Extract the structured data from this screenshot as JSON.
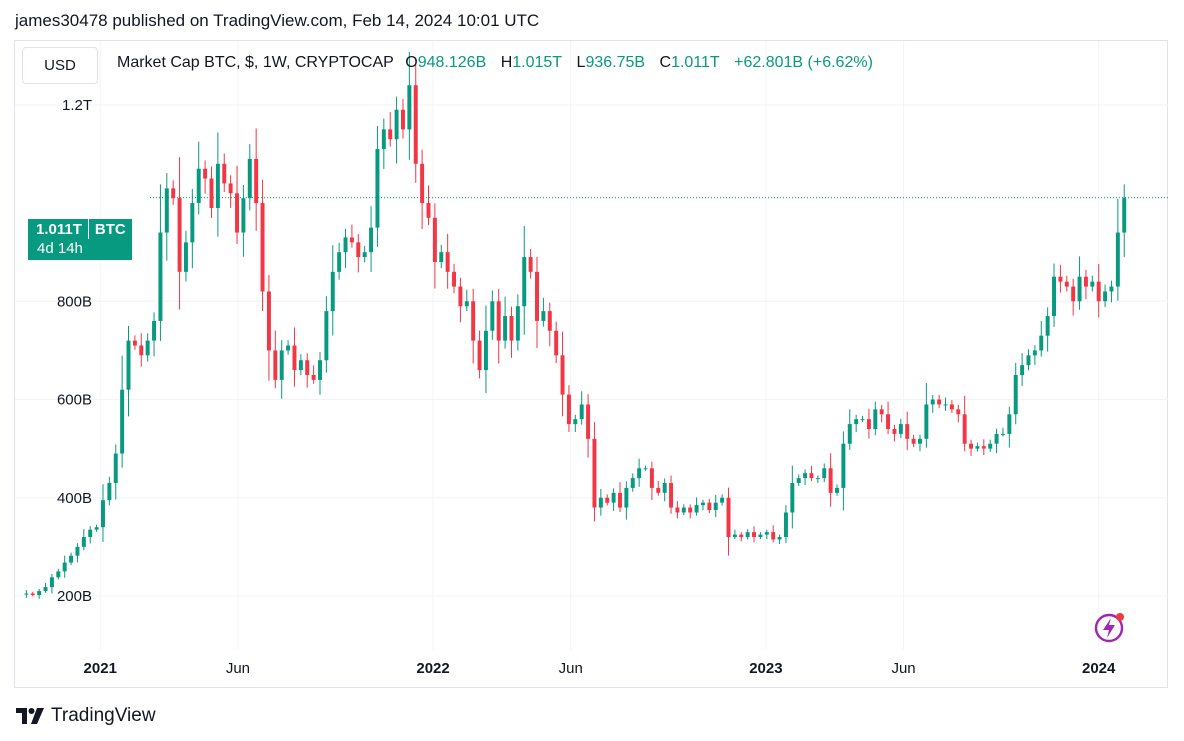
{
  "header": {
    "published_text": "james30478 published on TradingView.com, Feb 14, 2024 10:01 UTC"
  },
  "toolbar": {
    "currency_button": "USD"
  },
  "legend": {
    "symbol": "Market Cap BTC, $, 1W, CRYPTOCAP",
    "open_label": "O",
    "open_value": "948.126B",
    "high_label": "H",
    "high_value": "1.015T",
    "low_label": "L",
    "low_value": "936.75B",
    "close_label": "C",
    "close_value": "1.011T",
    "change": "+62.801B (+6.62%)"
  },
  "price_tag": {
    "value": "1.011T",
    "unit": "BTC",
    "countdown": "4d 14h"
  },
  "footer": {
    "brand": "TradingView"
  },
  "colors": {
    "up": "#089981",
    "down": "#f23645",
    "grid": "#f0f3fa",
    "text": "#131722",
    "bolt": "#9c27b0"
  },
  "chart_data": {
    "type": "candlestick",
    "interval": "1W",
    "unit": "USD (billions)",
    "y_axis_ticks": [
      {
        "value": 200,
        "label": "200B"
      },
      {
        "value": 400,
        "label": "400B"
      },
      {
        "value": 600,
        "label": "600B"
      },
      {
        "value": 800,
        "label": "800B"
      },
      {
        "value": 1200,
        "label": "1.2T"
      }
    ],
    "x_axis_ticks": [
      {
        "date": "2021-01-01",
        "label": "2021",
        "bold": true
      },
      {
        "date": "2021-06-01",
        "label": "Jun",
        "bold": false
      },
      {
        "date": "2022-01-01",
        "label": "2022",
        "bold": true
      },
      {
        "date": "2022-06-01",
        "label": "Jun",
        "bold": false
      },
      {
        "date": "2023-01-01",
        "label": "2023",
        "bold": true
      },
      {
        "date": "2023-06-01",
        "label": "Jun",
        "bold": false
      },
      {
        "date": "2024-01-01",
        "label": "2024",
        "bold": true
      }
    ],
    "ylim": [
      90,
      1330
    ],
    "xlim": [
      "2020-10-05",
      "2024-03-17"
    ],
    "last_price": 1011,
    "grid": true,
    "close_series": {
      "start_date": "2020-10-12",
      "step_days": 7,
      "values": [
        205,
        202,
        210,
        218,
        238,
        250,
        268,
        282,
        300,
        320,
        335,
        340,
        395,
        430,
        490,
        620,
        720,
        710,
        690,
        720,
        760,
        940,
        1030,
        1010,
        860,
        920,
        1000,
        1070,
        1050,
        990,
        1080,
        1040,
        1020,
        940,
        1010,
        1090,
        1000,
        820,
        700,
        640,
        700,
        710,
        660,
        680,
        650,
        640,
        680,
        780,
        860,
        900,
        930,
        920,
        890,
        900,
        950,
        1110,
        1150,
        1130,
        1190,
        1150,
        1240,
        1080,
        1000,
        970,
        880,
        900,
        860,
        830,
        790,
        800,
        720,
        660,
        740,
        800,
        720,
        770,
        720,
        790,
        890,
        860,
        760,
        780,
        740,
        690,
        610,
        550,
        560,
        590,
        520,
        380,
        400,
        390,
        410,
        380,
        420,
        440,
        460,
        460,
        420,
        410,
        430,
        380,
        370,
        380,
        370,
        385,
        390,
        375,
        390,
        400,
        320,
        325,
        320,
        330,
        320,
        325,
        330,
        315,
        320,
        370,
        430,
        440,
        450,
        440,
        440,
        460,
        410,
        420,
        510,
        550,
        560,
        560,
        540,
        580,
        570,
        540,
        530,
        550,
        520,
        510,
        520,
        590,
        600,
        590,
        590,
        580,
        570,
        510,
        500,
        505,
        500,
        510,
        530,
        530,
        570,
        650,
        670,
        690,
        700,
        730,
        770,
        850,
        840,
        830,
        800,
        850,
        830,
        840,
        800,
        820,
        830,
        940,
        1011
      ]
    }
  }
}
